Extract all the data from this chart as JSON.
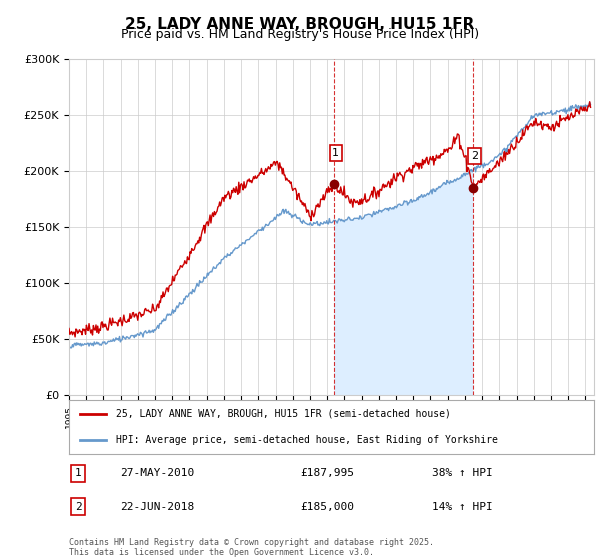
{
  "title": "25, LADY ANNE WAY, BROUGH, HU15 1FR",
  "subtitle": "Price paid vs. HM Land Registry's House Price Index (HPI)",
  "ylabel_ticks": [
    "£0",
    "£50K",
    "£100K",
    "£150K",
    "£200K",
    "£250K",
    "£300K"
  ],
  "ytick_values": [
    0,
    50000,
    100000,
    150000,
    200000,
    250000,
    300000
  ],
  "ylim": [
    0,
    300000
  ],
  "xlim_start": 1995.0,
  "xlim_end": 2025.5,
  "marker1_x": 2010.4,
  "marker1_y": 187995,
  "marker1_label": "1",
  "marker1_date": "27-MAY-2010",
  "marker1_price": "£187,995",
  "marker1_hpi": "38% ↑ HPI",
  "marker2_x": 2018.47,
  "marker2_y": 185000,
  "marker2_label": "2",
  "marker2_date": "22-JUN-2018",
  "marker2_price": "£185,000",
  "marker2_hpi": "14% ↑ HPI",
  "red_color": "#cc0000",
  "blue_color": "#6699cc",
  "fill_color": "#ddeeff",
  "vline_color": "#cc0000",
  "background_color": "#ffffff",
  "grid_color": "#cccccc",
  "legend_label_red": "25, LADY ANNE WAY, BROUGH, HU15 1FR (semi-detached house)",
  "legend_label_blue": "HPI: Average price, semi-detached house, East Riding of Yorkshire",
  "footer": "Contains HM Land Registry data © Crown copyright and database right 2025.\nThis data is licensed under the Open Government Licence v3.0.",
  "title_fontsize": 11,
  "subtitle_fontsize": 9,
  "tick_fontsize": 8,
  "xticks": [
    1995,
    1996,
    1997,
    1998,
    1999,
    2000,
    2001,
    2002,
    2003,
    2004,
    2005,
    2006,
    2007,
    2008,
    2009,
    2010,
    2011,
    2012,
    2013,
    2014,
    2015,
    2016,
    2017,
    2018,
    2019,
    2020,
    2021,
    2022,
    2023,
    2024,
    2025
  ]
}
